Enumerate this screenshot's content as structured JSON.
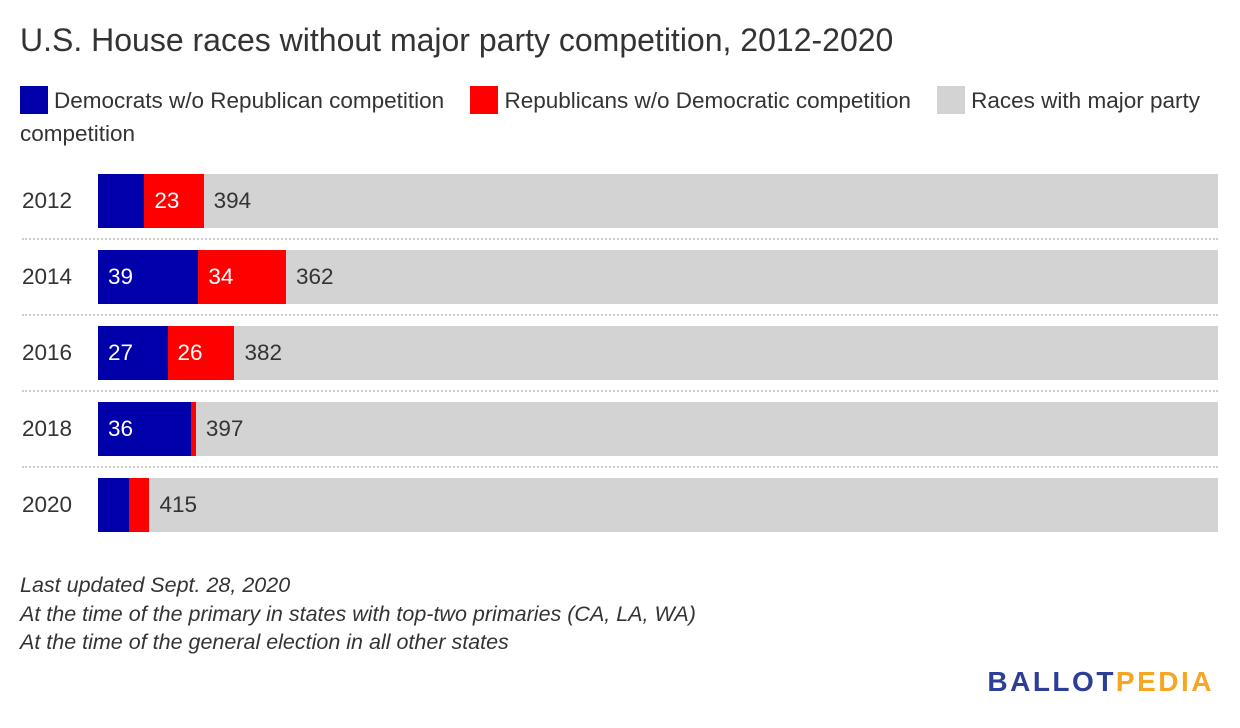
{
  "title": "U.S. House races without major party competition, 2012-2020",
  "legend": [
    {
      "label": "Democrats w/o Republican competition",
      "color": "#0000aa"
    },
    {
      "label": "Republicans w/o Democratic competition",
      "color": "#ff0000"
    },
    {
      "label": "Races with major party competition",
      "color": "#d3d3d3"
    }
  ],
  "footnotes": [
    "Last updated Sept. 28, 2020",
    "At the time of the primary in states with top-two primaries (CA, LA, WA)",
    "At the time of the general election in all other states"
  ],
  "logo": {
    "part1": "BALLOT",
    "part2": "PEDIA",
    "color1": "#2c3e96",
    "color2": "#f5a623"
  },
  "chart_data": {
    "type": "bar",
    "orientation": "horizontal",
    "stacked": true,
    "categories": [
      "2012",
      "2014",
      "2016",
      "2018",
      "2020"
    ],
    "series": [
      {
        "name": "Democrats w/o Republican competition",
        "color": "#0000aa",
        "values": [
          18,
          39,
          27,
          36,
          12
        ],
        "labels": [
          "",
          "39",
          "27",
          "36",
          ""
        ]
      },
      {
        "name": "Republicans w/o Democratic competition",
        "color": "#ff0000",
        "values": [
          23,
          34,
          26,
          2,
          8
        ],
        "labels": [
          "23",
          "34",
          "26",
          "",
          ""
        ]
      },
      {
        "name": "Races with major party competition",
        "color": "#d3d3d3",
        "values": [
          394,
          362,
          382,
          397,
          415
        ],
        "labels": [
          "394",
          "362",
          "382",
          "397",
          "415"
        ]
      }
    ],
    "total": 435,
    "grid": false,
    "legend_position": "top"
  }
}
